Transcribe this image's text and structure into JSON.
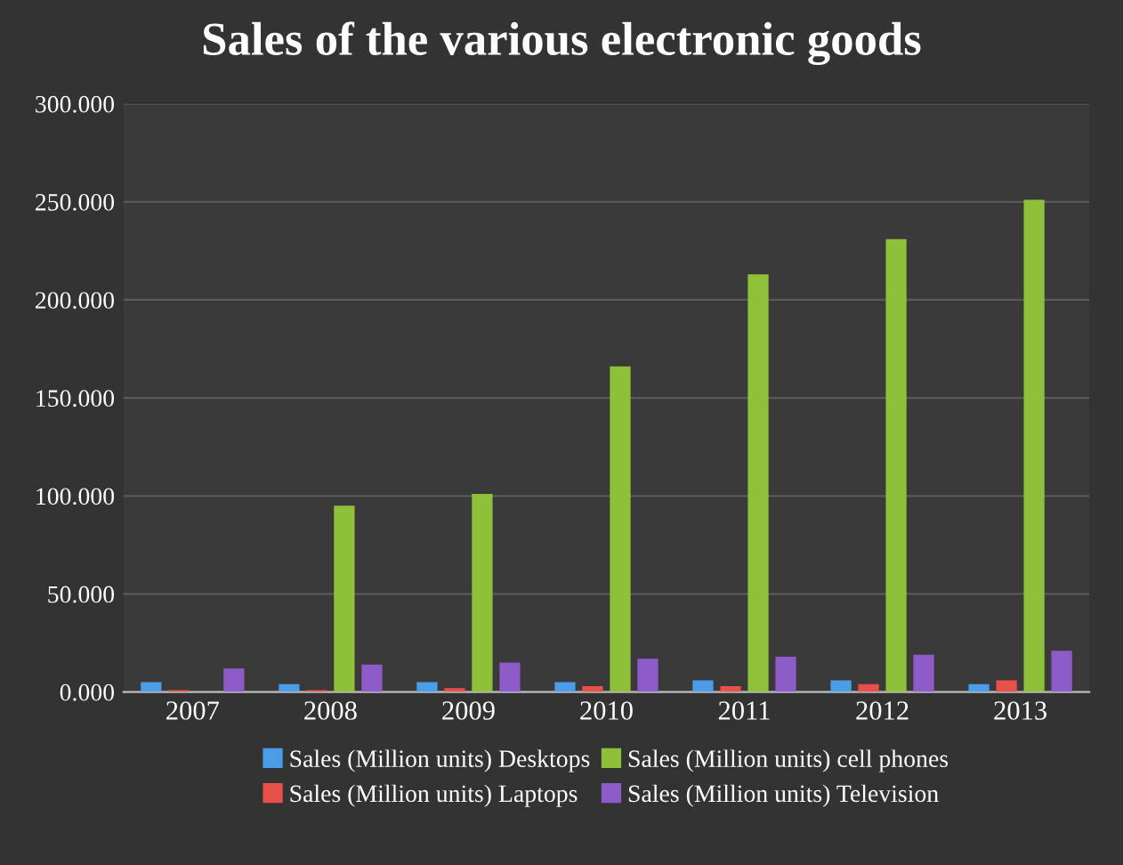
{
  "chart_data": {
    "type": "bar",
    "title": "Sales of the various electronic goods",
    "categories": [
      "2007",
      "2008",
      "2009",
      "2010",
      "2011",
      "2012",
      "2013"
    ],
    "series": [
      {
        "name": "Sales (Million units) Desktops",
        "color": "#4a9de6",
        "values": [
          5,
          4,
          5,
          5,
          6,
          6,
          4
        ]
      },
      {
        "name": "Sales (Million units) Laptops",
        "color": "#e8504a",
        "values": [
          1,
          1,
          2,
          3,
          3,
          4,
          6
        ]
      },
      {
        "name": "Sales (Million units) cell phones",
        "color": "#8fc03a",
        "values": [
          null,
          95,
          101,
          166,
          213,
          231,
          251
        ]
      },
      {
        "name": "Sales (Million units) Television",
        "color": "#8e5cc8",
        "values": [
          12,
          14,
          15,
          17,
          18,
          19,
          21
        ]
      }
    ],
    "ylim": [
      0,
      300
    ],
    "yticks": [
      {
        "value": 0,
        "label": "0.000"
      },
      {
        "value": 50,
        "label": "50.000"
      },
      {
        "value": 100,
        "label": "100.000"
      },
      {
        "value": 150,
        "label": "150.000"
      },
      {
        "value": 200,
        "label": "200.000"
      },
      {
        "value": 250,
        "label": "250.000"
      },
      {
        "value": 300,
        "label": "300.000"
      }
    ],
    "grid": "y",
    "legend": "bottom"
  }
}
